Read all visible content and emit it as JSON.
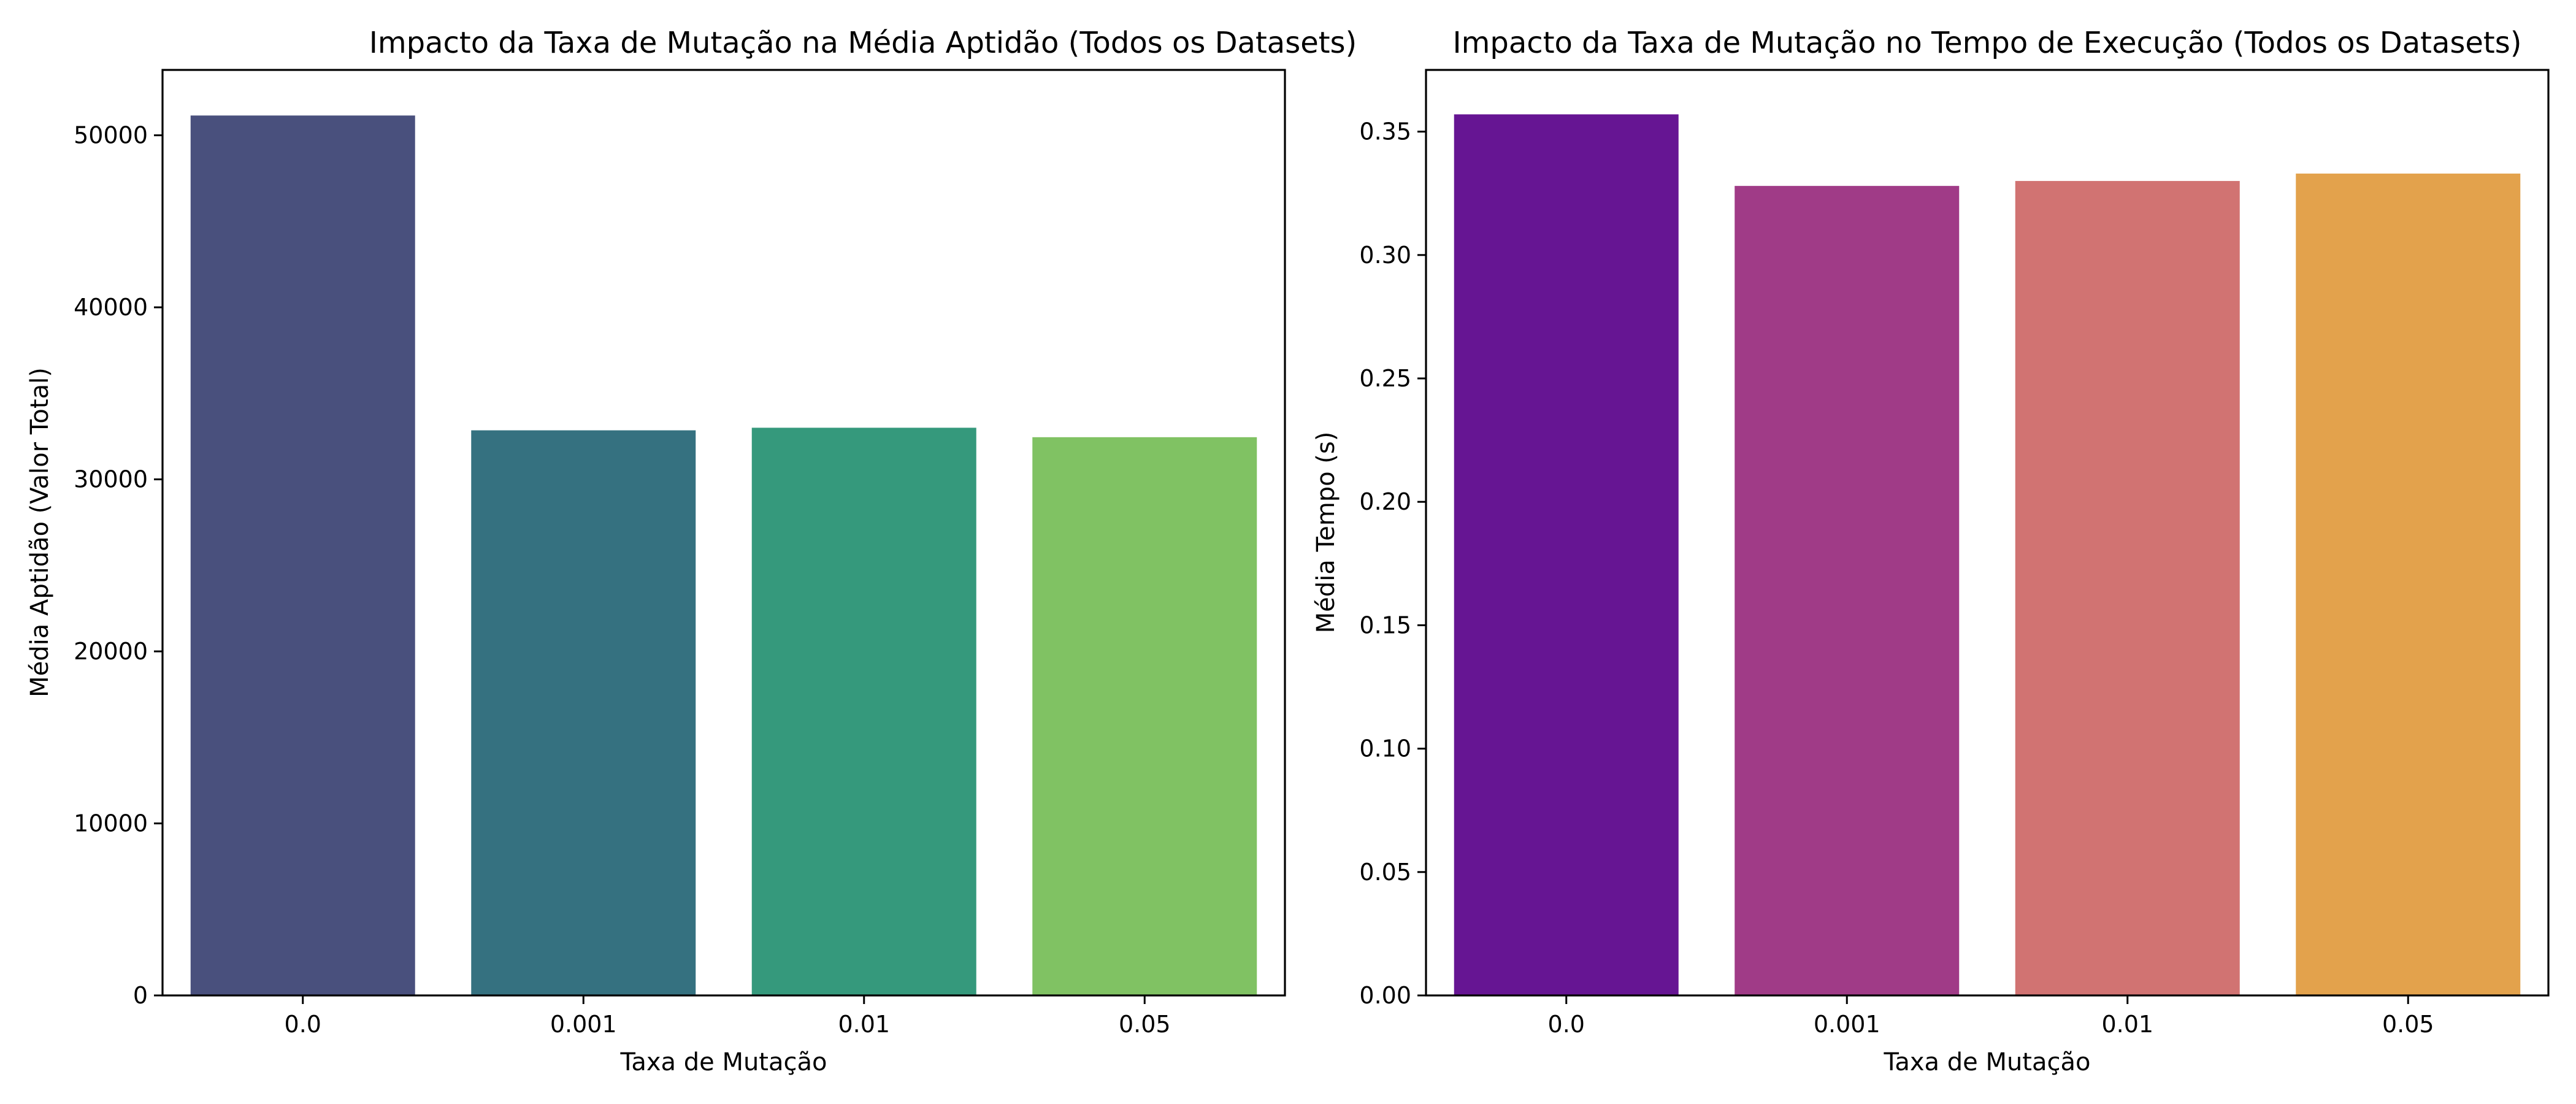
{
  "chart_data": [
    {
      "type": "bar",
      "title": "Impacto da Taxa de Mutação na Média Aptidão (Todos os Datasets)",
      "xlabel": "Taxa de Mutação",
      "ylabel": "Média Aptidão (Valor Total)",
      "categories": [
        "0.0",
        "0.001",
        "0.01",
        "0.05"
      ],
      "values": [
        51150,
        32850,
        33000,
        32450
      ],
      "colors": [
        "#49507d",
        "#357180",
        "#35997c",
        "#80c263"
      ],
      "ylim": [
        0,
        53800
      ],
      "yticks": [
        0,
        10000,
        20000,
        30000,
        40000,
        50000
      ],
      "ytick_labels": [
        "0",
        "10000",
        "20000",
        "30000",
        "40000",
        "50000"
      ],
      "grid": false
    },
    {
      "type": "bar",
      "title": "Impacto da Taxa de Mutação no Tempo de Execução (Todos os Datasets)",
      "xlabel": "Taxa de Mutação",
      "ylabel": "Média Tempo (s)",
      "categories": [
        "0.0",
        "0.001",
        "0.01",
        "0.05"
      ],
      "values": [
        0.357,
        0.328,
        0.33,
        0.333
      ],
      "colors": [
        "#661593",
        "#a03b87",
        "#d17372",
        "#e3a24c"
      ],
      "ylim": [
        0,
        0.375
      ],
      "yticks": [
        0.0,
        0.05,
        0.1,
        0.15,
        0.2,
        0.25,
        0.3,
        0.35
      ],
      "ytick_labels": [
        "0.00",
        "0.05",
        "0.10",
        "0.15",
        "0.20",
        "0.25",
        "0.30",
        "0.35"
      ],
      "grid": false
    }
  ]
}
